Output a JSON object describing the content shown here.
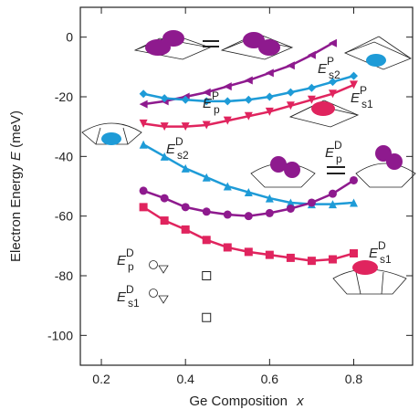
{
  "chart_data": {
    "type": "line",
    "x_label": {
      "text": "Ge Composition",
      "var": "x"
    },
    "y_label": {
      "text": "Electron Energy",
      "var": "E",
      "unit": "(meV)"
    },
    "xlim": [
      0.15,
      0.94
    ],
    "xticks": [
      0.2,
      0.4,
      0.6,
      0.8
    ],
    "ylim": [
      -110,
      10
    ],
    "yticks": [
      0,
      -20,
      -40,
      -60,
      -80,
      -100
    ],
    "series": [
      {
        "color": "#8e1a8e",
        "marker": "triangle-left",
        "x": [
          0.3,
          0.35,
          0.4,
          0.45,
          0.5,
          0.55,
          0.6,
          0.65,
          0.7,
          0.75
        ],
        "values": [
          -22.5,
          -21.5,
          -20,
          -18.5,
          -16.5,
          -14.5,
          -12,
          -9.5,
          -6,
          -2
        ]
      },
      {
        "color": "#1e9bd7",
        "marker": "diamond",
        "x": [
          0.3,
          0.35,
          0.4,
          0.45,
          0.5,
          0.55,
          0.6,
          0.65,
          0.7,
          0.75,
          0.8
        ],
        "values": [
          -19,
          -20.5,
          -21,
          -21.5,
          -21.5,
          -21,
          -20,
          -18.5,
          -17,
          -15,
          -13
        ]
      },
      {
        "color": "#e0245e",
        "marker": "triangle-down",
        "x": [
          0.3,
          0.35,
          0.4,
          0.45,
          0.5,
          0.55,
          0.6,
          0.65,
          0.7,
          0.75,
          0.8
        ],
        "values": [
          -29,
          -30,
          -30,
          -29.5,
          -28,
          -26.5,
          -25,
          -23,
          -21,
          -19,
          -16
        ]
      },
      {
        "color": "#1e9bd7",
        "marker": "triangle-up",
        "x": [
          0.3,
          0.35,
          0.4,
          0.45,
          0.5,
          0.55,
          0.6,
          0.65,
          0.7,
          0.75,
          0.8
        ],
        "values": [
          -36,
          -40,
          -44,
          -47,
          -50,
          -52,
          -54,
          -55.5,
          -56,
          -56,
          -55.5
        ]
      },
      {
        "color": "#8e1a8e",
        "marker": "circle",
        "x": [
          0.3,
          0.35,
          0.4,
          0.45,
          0.5,
          0.55,
          0.6,
          0.65,
          0.7,
          0.75,
          0.8
        ],
        "values": [
          -51.5,
          -54,
          -57,
          -58.5,
          -59.5,
          -60,
          -59,
          -57.5,
          -55.5,
          -52.5,
          -48
        ]
      },
      {
        "color": "#e0245e",
        "marker": "circle-square",
        "x": [
          0.3,
          0.35,
          0.4,
          0.45,
          0.5,
          0.55,
          0.6,
          0.65,
          0.7,
          0.75,
          0.8
        ],
        "values": [
          -57,
          -61.5,
          -64.5,
          -68,
          -70.5,
          -72,
          -73,
          -74,
          -75,
          -74.5,
          -72.5
        ]
      },
      {
        "color": "#222222",
        "marker": "square-open",
        "x": [
          0.45,
          0.45
        ],
        "values": [
          -80,
          -94
        ]
      }
    ],
    "annotations": [
      {
        "text": "E",
        "sub": "p",
        "sup": "P"
      },
      {
        "text": "E",
        "sub": "s2",
        "sup": "P"
      },
      {
        "text": "E",
        "sub": "s1",
        "sup": "P"
      },
      {
        "text": "E",
        "sub": "s2",
        "sup": "D"
      },
      {
        "text": "E",
        "sub": "p",
        "sup": "D"
      },
      {
        "text": "E",
        "sub": "s1",
        "sup": "D"
      },
      {
        "text": "E",
        "sub": "p",
        "sup": "D"
      },
      {
        "text": "E",
        "sub": "s1",
        "sup": "D"
      }
    ]
  }
}
